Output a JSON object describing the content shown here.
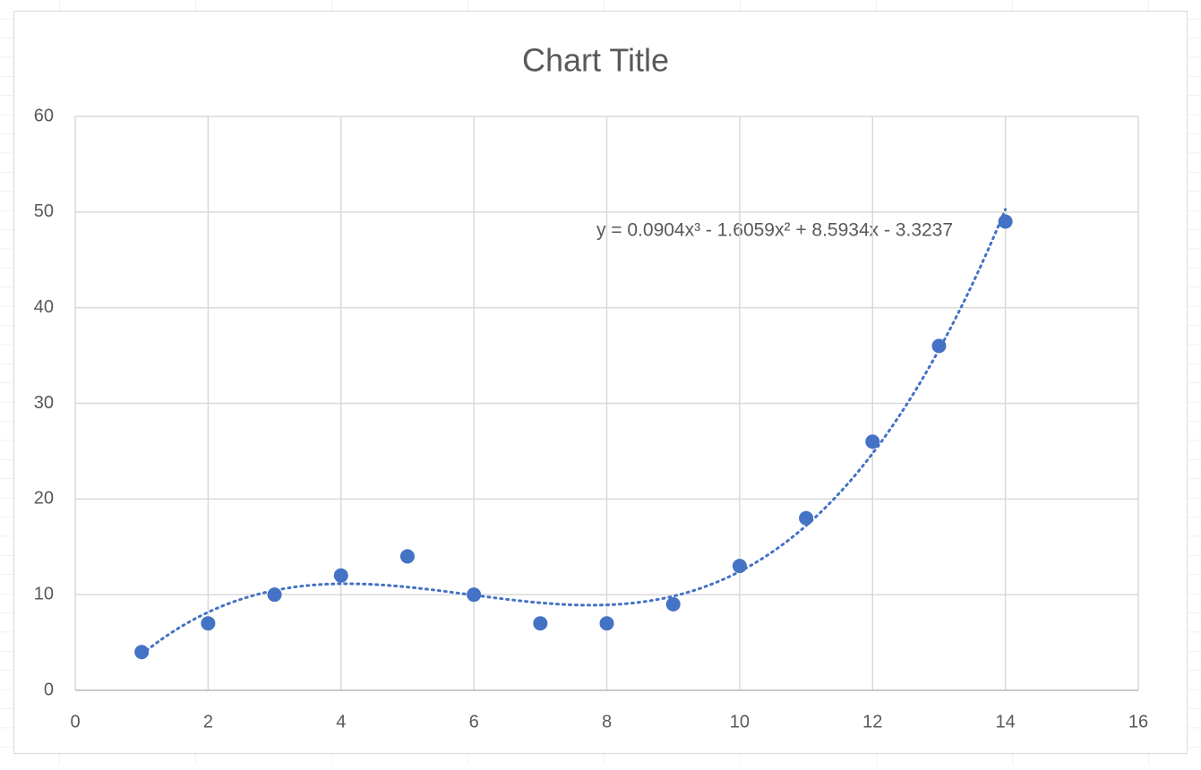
{
  "chart_data": {
    "type": "scatter",
    "title": "Chart Title",
    "x": [
      1,
      2,
      3,
      4,
      5,
      6,
      7,
      8,
      9,
      10,
      11,
      12,
      13,
      14
    ],
    "values": [
      4,
      7,
      10,
      12,
      14,
      10,
      7,
      7,
      9,
      13,
      18,
      26,
      36,
      49
    ],
    "color": "#4472c4",
    "xlim": [
      0,
      16
    ],
    "xticks": [
      0,
      2,
      4,
      6,
      8,
      10,
      12,
      14,
      16
    ],
    "ylim": [
      0,
      60
    ],
    "yticks": [
      0,
      10,
      20,
      30,
      40,
      50,
      60
    ],
    "grid": true,
    "trendline": {
      "type": "polynomial",
      "coefficients": [
        0.0904,
        -1.6059,
        8.5934,
        -3.3237
      ],
      "equation": "y = 0.0904x³ - 1.6059x² + 8.5934x - 3.3237"
    }
  }
}
